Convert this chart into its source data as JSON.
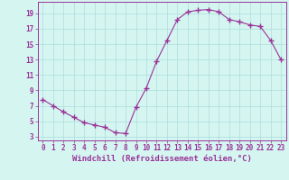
{
  "x": [
    0,
    1,
    2,
    3,
    4,
    5,
    6,
    7,
    8,
    9,
    10,
    11,
    12,
    13,
    14,
    15,
    16,
    17,
    18,
    19,
    20,
    21,
    22,
    23
  ],
  "y": [
    7.8,
    7.0,
    6.2,
    5.5,
    4.8,
    4.5,
    4.2,
    3.5,
    3.4,
    6.8,
    9.3,
    12.8,
    15.5,
    18.2,
    19.2,
    19.4,
    19.5,
    19.2,
    18.2,
    17.9,
    17.5,
    17.3,
    15.5,
    13.0
  ],
  "line_color": "#993399",
  "marker": "+",
  "marker_size": 4,
  "bg_color": "#d5f5f0",
  "grid_color": "#aadddd",
  "xlabel": "Windchill (Refroidissement éolien,°C)",
  "xlim": [
    -0.5,
    23.5
  ],
  "ylim": [
    2.5,
    20.5
  ],
  "yticks": [
    3,
    5,
    7,
    9,
    11,
    13,
    15,
    17,
    19
  ],
  "xticks": [
    0,
    1,
    2,
    3,
    4,
    5,
    6,
    7,
    8,
    9,
    10,
    11,
    12,
    13,
    14,
    15,
    16,
    17,
    18,
    19,
    20,
    21,
    22,
    23
  ],
  "tick_color": "#993399",
  "label_color": "#993399",
  "axis_color": "#993399",
  "font_size": 5.5,
  "xlabel_font_size": 6.5
}
